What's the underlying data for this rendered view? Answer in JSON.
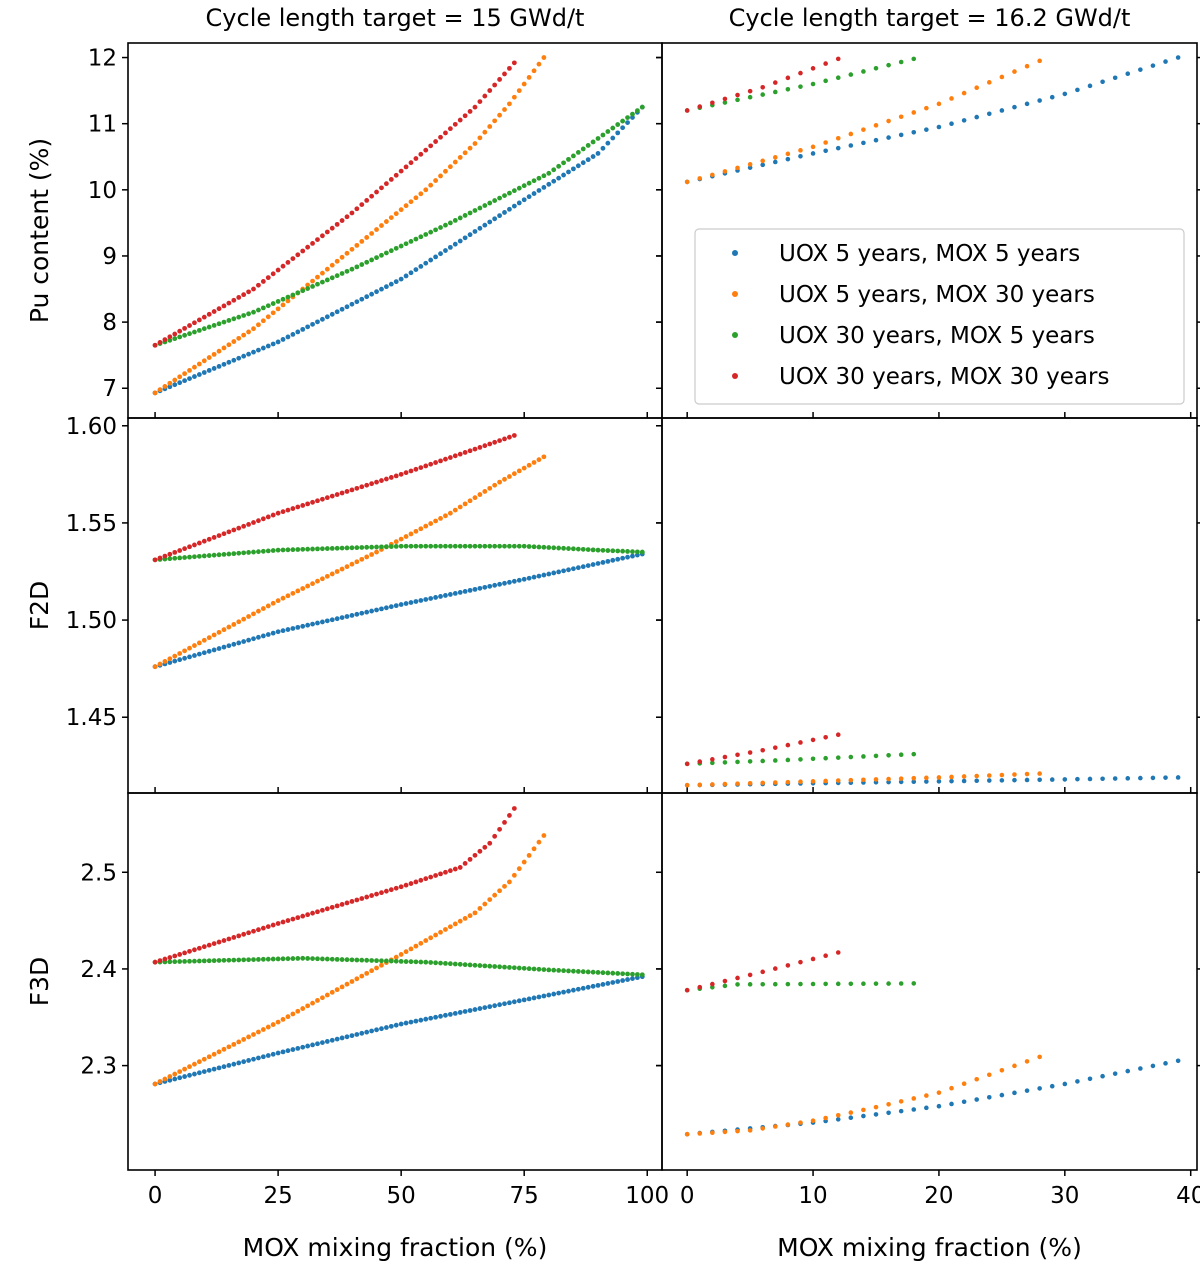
{
  "chart_data": {
    "type": "scatter",
    "colors": {
      "UOX 5 years, MOX 5 years": "#1f77b4",
      "UOX 5 years, MOX 30 years": "#ff7f0e",
      "UOX 30 years, MOX 5 years": "#2ca02c",
      "UOX 30 years, MOX 30 years": "#d62728"
    },
    "columns": [
      {
        "title": "Cycle length target = 15 GWd/t",
        "xlabel": "MOX mixing fraction (%)",
        "xlim": [
          -5.5,
          103
        ],
        "xticks": [
          0,
          25,
          50,
          75,
          100
        ]
      },
      {
        "title": "Cycle length target = 16.2 GWd/t",
        "xlabel": "MOX mixing fraction (%)",
        "xlim": [
          -2,
          40.5
        ],
        "xticks": [
          0,
          10,
          20,
          30,
          40
        ]
      }
    ],
    "rows": [
      {
        "ylabel": "Pu content (%)",
        "ylim": [
          6.55,
          12.22
        ],
        "yticks": [
          7,
          8,
          9,
          10,
          11,
          12
        ],
        "tick_decimals": 0
      },
      {
        "ylabel": "F2D",
        "ylim": [
          1.411,
          1.604
        ],
        "yticks": [
          1.45,
          1.5,
          1.55,
          1.6
        ],
        "tick_decimals": 2
      },
      {
        "ylabel": "F3D",
        "ylim": [
          2.192,
          2.582
        ],
        "yticks": [
          2.3,
          2.4,
          2.5
        ],
        "tick_decimals": 1
      }
    ],
    "legend": {
      "location": "center-right of top-right panel",
      "entries": [
        "UOX 5 years, MOX 5 years",
        "UOX 5 years, MOX 30 years",
        "UOX 30 years, MOX 5 years",
        "UOX 30 years, MOX 30 years"
      ]
    },
    "panels": [
      {
        "row": 0,
        "col": 0,
        "step": 1,
        "series": [
          {
            "name": "UOX 5 years, MOX 5 years",
            "x": [
              0,
              25,
              50,
              75,
              90,
              99
            ],
            "y": [
              6.93,
              7.7,
              8.65,
              9.85,
              10.55,
              11.25
            ]
          },
          {
            "name": "UOX 5 years, MOX 30 years",
            "x": [
              0,
              20,
              40,
              55,
              65,
              72,
              79
            ],
            "y": [
              6.93,
              7.9,
              9.1,
              10.0,
              10.7,
              11.3,
              12.0
            ]
          },
          {
            "name": "UOX 30 years, MOX 5 years",
            "x": [
              0,
              20,
              40,
              60,
              80,
              99
            ],
            "y": [
              7.65,
              8.15,
              8.8,
              9.5,
              10.25,
              11.25
            ]
          },
          {
            "name": "UOX 30 years, MOX 30 years",
            "x": [
              0,
              20,
              40,
              55,
              65,
              73
            ],
            "y": [
              7.65,
              8.5,
              9.65,
              10.6,
              11.25,
              11.92
            ]
          }
        ]
      },
      {
        "row": 0,
        "col": 1,
        "step": 1,
        "series": [
          {
            "name": "UOX 5 years, MOX 5 years",
            "x": [
              0,
              10,
              20,
              30,
              39
            ],
            "y": [
              10.12,
              10.55,
              10.95,
              11.45,
              12.0
            ]
          },
          {
            "name": "UOX 5 years, MOX 30 years",
            "x": [
              0,
              10,
              20,
              28
            ],
            "y": [
              10.12,
              10.65,
              11.3,
              11.95
            ]
          },
          {
            "name": "UOX 30 years, MOX 5 years",
            "x": [
              0,
              10,
              18
            ],
            "y": [
              11.2,
              11.6,
              11.98
            ]
          },
          {
            "name": "UOX 30 years, MOX 30 years",
            "x": [
              0,
              6,
              12
            ],
            "y": [
              11.2,
              11.55,
              11.98
            ]
          }
        ]
      },
      {
        "row": 1,
        "col": 0,
        "step": 1,
        "series": [
          {
            "name": "UOX 5 years, MOX 5 years",
            "x": [
              0,
              25,
              50,
              75,
              99
            ],
            "y": [
              1.476,
              1.494,
              1.508,
              1.521,
              1.534
            ]
          },
          {
            "name": "UOX 5 years, MOX 30 years",
            "x": [
              0,
              25,
              45,
              60,
              70,
              79
            ],
            "y": [
              1.476,
              1.51,
              1.535,
              1.555,
              1.571,
              1.584
            ]
          },
          {
            "name": "UOX 30 years, MOX 5 years",
            "x": [
              0,
              25,
              50,
              75,
              90,
              99
            ],
            "y": [
              1.531,
              1.536,
              1.538,
              1.538,
              1.536,
              1.535
            ]
          },
          {
            "name": "UOX 30 years, MOX 30 years",
            "x": [
              0,
              25,
              50,
              65,
              73
            ],
            "y": [
              1.531,
              1.555,
              1.575,
              1.588,
              1.595
            ]
          }
        ]
      },
      {
        "row": 1,
        "col": 1,
        "step": 1,
        "series": [
          {
            "name": "UOX 5 years, MOX 5 years",
            "x": [
              0,
              10,
              20,
              30,
              39
            ],
            "y": [
              1.415,
              1.416,
              1.417,
              1.418,
              1.419
            ]
          },
          {
            "name": "UOX 5 years, MOX 30 years",
            "x": [
              0,
              10,
              20,
              28
            ],
            "y": [
              1.415,
              1.417,
              1.419,
              1.421
            ]
          },
          {
            "name": "UOX 30 years, MOX 5 years",
            "x": [
              0,
              8,
              18
            ],
            "y": [
              1.426,
              1.428,
              1.431
            ]
          },
          {
            "name": "UOX 30 years, MOX 30 years",
            "x": [
              0,
              6,
              12
            ],
            "y": [
              1.426,
              1.433,
              1.441
            ]
          }
        ]
      },
      {
        "row": 2,
        "col": 0,
        "step": 1,
        "series": [
          {
            "name": "UOX 5 years, MOX 5 years",
            "x": [
              0,
              25,
              50,
              75,
              99
            ],
            "y": [
              2.281,
              2.313,
              2.343,
              2.368,
              2.392
            ]
          },
          {
            "name": "UOX 5 years, MOX 30 years",
            "x": [
              0,
              25,
              50,
              65,
              72,
              79
            ],
            "y": [
              2.281,
              2.345,
              2.415,
              2.458,
              2.49,
              2.538
            ]
          },
          {
            "name": "UOX 30 years, MOX 5 years",
            "x": [
              0,
              30,
              55,
              80,
              99
            ],
            "y": [
              2.407,
              2.411,
              2.407,
              2.399,
              2.394
            ]
          },
          {
            "name": "UOX 30 years, MOX 30 years",
            "x": [
              0,
              25,
              50,
              62,
              68,
              73
            ],
            "y": [
              2.407,
              2.447,
              2.485,
              2.505,
              2.53,
              2.566
            ]
          }
        ]
      },
      {
        "row": 2,
        "col": 1,
        "step": 1,
        "series": [
          {
            "name": "UOX 5 years, MOX 5 years",
            "x": [
              0,
              10,
              20,
              30,
              39
            ],
            "y": [
              2.229,
              2.241,
              2.258,
              2.281,
              2.305
            ]
          },
          {
            "name": "UOX 5 years, MOX 30 years",
            "x": [
              0,
              5,
              10,
              15,
              20,
              28
            ],
            "y": [
              2.229,
              2.233,
              2.243,
              2.257,
              2.272,
              2.309
            ]
          },
          {
            "name": "UOX 30 years, MOX 5 years",
            "x": [
              0,
              4,
              18
            ],
            "y": [
              2.378,
              2.384,
              2.385
            ]
          },
          {
            "name": "UOX 30 years, MOX 30 years",
            "x": [
              0,
              6,
              12
            ],
            "y": [
              2.378,
              2.397,
              2.417
            ]
          }
        ]
      }
    ]
  }
}
